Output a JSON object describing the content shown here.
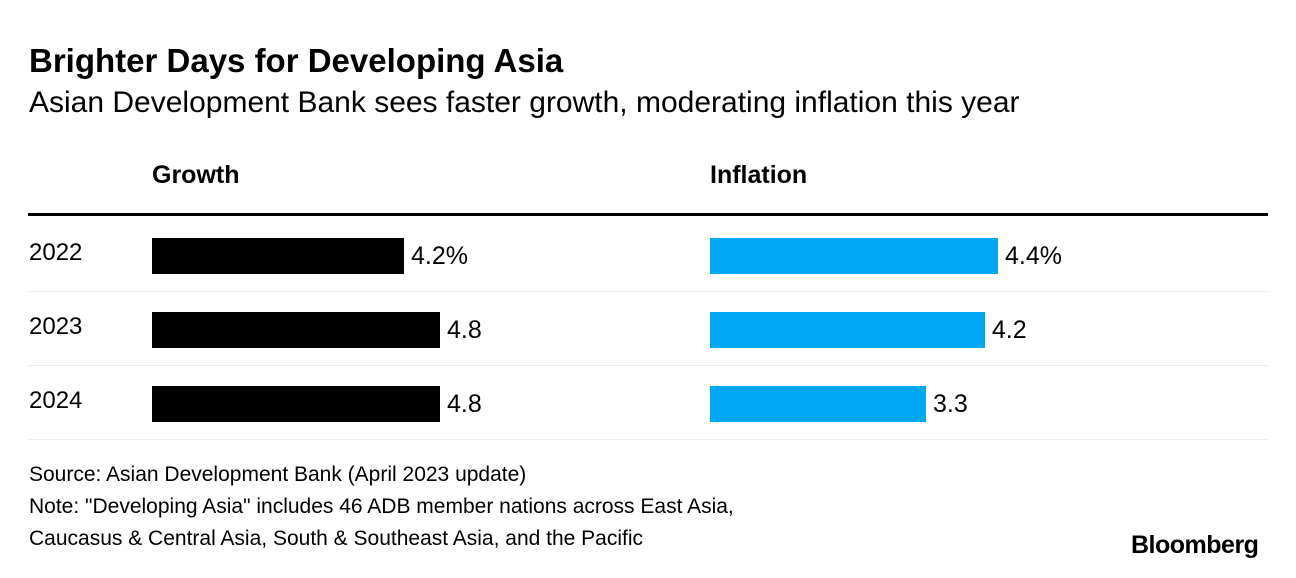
{
  "title": "Brighter Days for Developing Asia",
  "subtitle": "Asian Development Bank sees faster growth, moderating inflation this year",
  "source": "Source: Asian Development Bank (April 2023 update)",
  "note_line1": "Note: \"Developing Asia\" includes 46 ADB member nations across East Asia,",
  "note_line2": "Caucasus & Central Asia, South & Southeast Asia, and the Pacific",
  "logo": "Bloomberg",
  "chart_data": {
    "type": "bar",
    "categories": [
      "2022",
      "2023",
      "2024"
    ],
    "series": [
      {
        "name": "Growth",
        "values": [
          4.2,
          4.8,
          4.8
        ],
        "labels": [
          "4.2%",
          "4.8",
          "4.8"
        ],
        "color": "#000000"
      },
      {
        "name": "Inflation",
        "values": [
          4.4,
          4.2,
          3.3
        ],
        "labels": [
          "4.4%",
          "4.2",
          "3.3"
        ],
        "color": "#00a7f5"
      }
    ]
  }
}
